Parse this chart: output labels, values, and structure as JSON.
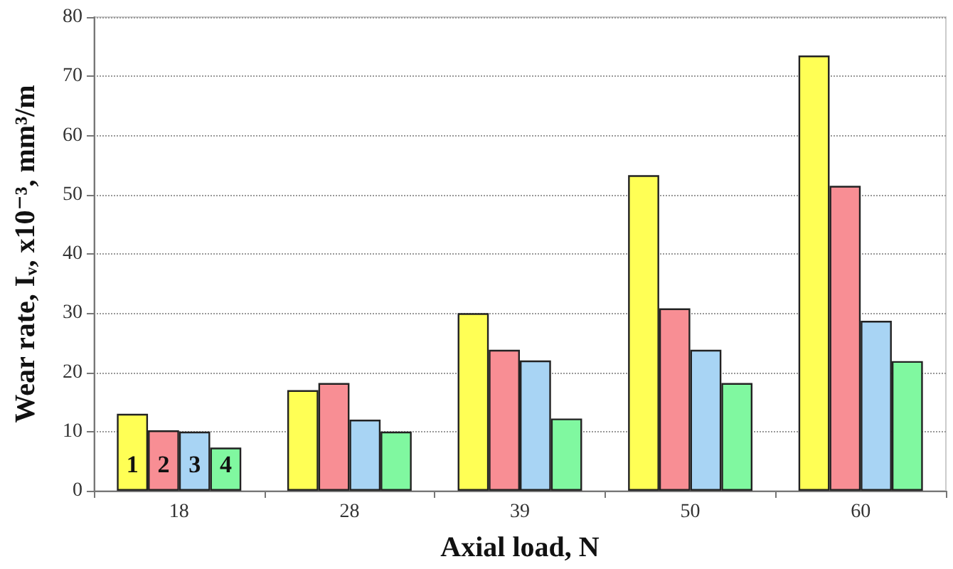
{
  "chart_data": {
    "type": "bar",
    "xlabel": "Axial load, N",
    "ylabel": "Wear rate, Iᵥ, x10⁻³, mm³/m",
    "categories": [
      "18",
      "28",
      "39",
      "50",
      "60"
    ],
    "series": [
      {
        "name": "1",
        "color": "#ffff55",
        "values": [
          13,
          17,
          30,
          53.3,
          73.5
        ]
      },
      {
        "name": "2",
        "color": "#f88e94",
        "values": [
          10.2,
          18.2,
          23.8,
          30.8,
          51.5
        ]
      },
      {
        "name": "3",
        "color": "#a8d4f4",
        "values": [
          10,
          12,
          22,
          23.8,
          28.7
        ]
      },
      {
        "name": "4",
        "color": "#80f8a0",
        "values": [
          7.3,
          10,
          12.2,
          18.2,
          21.9
        ]
      }
    ],
    "ylim": [
      0,
      80
    ],
    "yticks": [
      0,
      10,
      20,
      30,
      40,
      50,
      60,
      70,
      80
    ],
    "grid": "y",
    "legend": false
  }
}
